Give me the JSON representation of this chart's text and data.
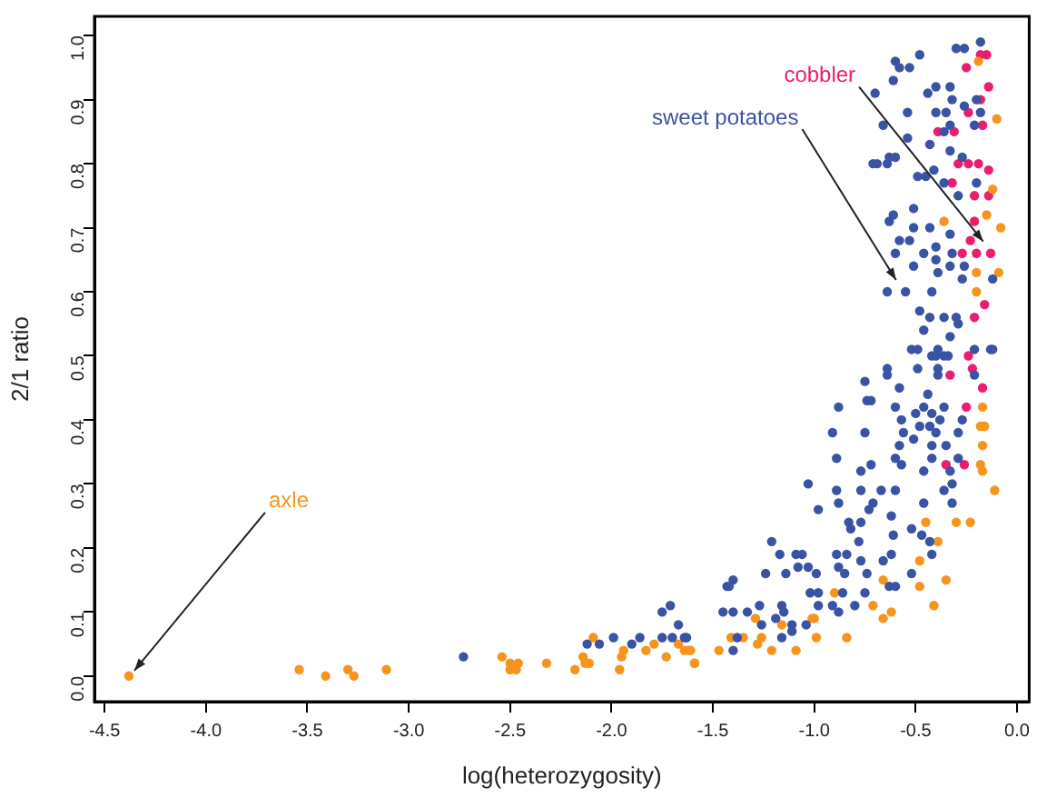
{
  "chart_data": {
    "type": "scatter",
    "xlabel": "log(heterozygosity)",
    "ylabel": "2/1 ratio",
    "marker": "circle",
    "grid": false,
    "legend": false,
    "xlim": [
      -4.55,
      0.06
    ],
    "ylim": [
      -0.04,
      1.03
    ],
    "xticks": [
      {
        "value": -4.5,
        "label": "-4.5"
      },
      {
        "value": -4,
        "label": "-4.0"
      },
      {
        "value": -3.5,
        "label": "-3.5"
      },
      {
        "value": -3,
        "label": "-3.0"
      },
      {
        "value": -2.5,
        "label": "-2.5"
      },
      {
        "value": -2,
        "label": "-2.0"
      },
      {
        "value": -1.5,
        "label": "-1.5"
      },
      {
        "value": -1,
        "label": "-1.0"
      },
      {
        "value": -0.5,
        "label": "-0.5"
      },
      {
        "value": 0,
        "label": "0.0"
      }
    ],
    "yticks": [
      {
        "value": 0,
        "label": "0.0"
      },
      {
        "value": 0.1,
        "label": "0.1"
      },
      {
        "value": 0.2,
        "label": "0.2"
      },
      {
        "value": 0.3,
        "label": "0.3"
      },
      {
        "value": 0.4,
        "label": "0.4"
      },
      {
        "value": 0.5,
        "label": "0.5"
      },
      {
        "value": 0.6,
        "label": "0.6"
      },
      {
        "value": 0.7,
        "label": "0.7"
      },
      {
        "value": 0.8,
        "label": "0.8"
      },
      {
        "value": 0.9,
        "label": "0.9"
      },
      {
        "value": 1,
        "label": "1.0"
      }
    ],
    "series": [
      {
        "color": "#3a53a4",
        "x": [
          -0.18,
          -0.26,
          -0.3,
          -0.48,
          -0.6,
          -0.53,
          -0.58,
          -0.61,
          -0.7,
          -0.4,
          -0.33,
          -0.44,
          -0.32,
          -0.2,
          -0.26,
          -0.18,
          -0.54,
          -0.4,
          -0.35,
          -0.66,
          -0.33,
          -0.21,
          -0.54,
          -0.36,
          -0.43,
          -0.33,
          -0.27,
          -0.63,
          -0.6,
          -0.69,
          -0.71,
          -0.64,
          -0.41,
          -0.49,
          -0.45,
          -0.36,
          -0.29,
          -0.2,
          -0.51,
          -0.61,
          -0.63,
          -0.51,
          -0.43,
          -0.33,
          -0.58,
          -0.53,
          -0.46,
          -0.4,
          -0.32,
          -0.33,
          -0.26,
          -0.4,
          -0.6,
          -0.51,
          -0.39,
          -0.27,
          -0.12,
          -0.64,
          -0.55,
          -0.42,
          -0.48,
          -0.43,
          -0.36,
          -0.3,
          -0.46,
          -0.29,
          -0.33,
          -0.39,
          -0.52,
          -0.49,
          -0.42,
          -0.36,
          -0.13,
          -0.21,
          -0.4,
          -0.34,
          -0.12,
          -0.64,
          -0.64,
          -0.49,
          -0.39,
          -0.39,
          -0.21,
          -0.75,
          -0.58,
          -0.44,
          -0.74,
          -0.72,
          -0.6,
          -0.88,
          -0.46,
          -0.42,
          -0.36,
          -0.57,
          -0.5,
          -0.43,
          -0.38,
          -0.27,
          -0.75,
          -0.91,
          -0.56,
          -0.48,
          -0.4,
          -0.29,
          -0.58,
          -0.51,
          -0.42,
          -0.35,
          -0.6,
          -0.89,
          -0.72,
          -0.57,
          -0.46,
          -0.33,
          -0.42,
          -0.29,
          -0.77,
          -0.89,
          -1.03,
          -0.32,
          -0.36,
          -0.67,
          -0.6,
          -0.77,
          -0.71,
          -0.88,
          -0.98,
          -0.32,
          -0.46,
          -0.83,
          -0.73,
          -0.62,
          -0.82,
          -0.77,
          -0.61,
          -0.52,
          -0.47,
          -0.78,
          -1.21,
          -0.43,
          -0.42,
          -0.89,
          -0.84,
          -1.17,
          -1.09,
          -1.06,
          -0.66,
          -0.62,
          -0.77,
          -1.24,
          -1.14,
          -1.08,
          -1.03,
          -0.99,
          -0.88,
          -0.85,
          -0.74,
          -0.52,
          -1.43,
          -1.4,
          -1.42,
          -1.02,
          -0.98,
          -0.86,
          -0.75,
          -0.63,
          -0.6,
          -0.91,
          -0.98,
          -0.8,
          -1.45,
          -1.4,
          -1.33,
          -1.27,
          -1.16,
          -1.15,
          -1.19,
          -1.11,
          -1.26,
          -1.04,
          -0.88,
          -1.38,
          -1.4,
          -1.16,
          -1.11,
          -1.63,
          -2.73,
          -2.12,
          -2.06,
          -1.99,
          -1.9,
          -1.86,
          -1.75,
          -1.75,
          -1.71,
          -1.67,
          -1.7,
          -1.64
        ],
        "values": [
          0.99,
          0.98,
          0.98,
          0.97,
          0.96,
          0.95,
          0.95,
          0.93,
          0.91,
          0.92,
          0.92,
          0.91,
          0.9,
          0.9,
          0.89,
          0.88,
          0.88,
          0.88,
          0.88,
          0.86,
          0.86,
          0.86,
          0.84,
          0.85,
          0.83,
          0.82,
          0.81,
          0.81,
          0.81,
          0.8,
          0.8,
          0.8,
          0.79,
          0.78,
          0.78,
          0.77,
          0.75,
          0.77,
          0.73,
          0.72,
          0.71,
          0.7,
          0.7,
          0.69,
          0.68,
          0.68,
          0.66,
          0.67,
          0.66,
          0.64,
          0.64,
          0.65,
          0.66,
          0.64,
          0.63,
          0.62,
          0.62,
          0.6,
          0.6,
          0.6,
          0.57,
          0.56,
          0.56,
          0.56,
          0.54,
          0.55,
          0.53,
          0.51,
          0.51,
          0.51,
          0.5,
          0.5,
          0.51,
          0.51,
          0.5,
          0.5,
          0.51,
          0.48,
          0.47,
          0.48,
          0.48,
          0.47,
          0.47,
          0.46,
          0.45,
          0.44,
          0.43,
          0.43,
          0.42,
          0.42,
          0.42,
          0.41,
          0.42,
          0.4,
          0.41,
          0.39,
          0.4,
          0.4,
          0.38,
          0.38,
          0.38,
          0.39,
          0.38,
          0.38,
          0.36,
          0.37,
          0.36,
          0.36,
          0.34,
          0.34,
          0.33,
          0.33,
          0.32,
          0.32,
          0.34,
          0.34,
          0.32,
          0.29,
          0.3,
          0.3,
          0.29,
          0.29,
          0.29,
          0.29,
          0.27,
          0.27,
          0.26,
          0.27,
          0.27,
          0.24,
          0.26,
          0.25,
          0.23,
          0.24,
          0.22,
          0.23,
          0.22,
          0.21,
          0.21,
          0.21,
          0.19,
          0.19,
          0.19,
          0.19,
          0.19,
          0.19,
          0.18,
          0.19,
          0.18,
          0.16,
          0.16,
          0.17,
          0.17,
          0.16,
          0.17,
          0.16,
          0.16,
          0.16,
          0.14,
          0.15,
          0.14,
          0.13,
          0.13,
          0.13,
          0.13,
          0.14,
          0.14,
          0.11,
          0.11,
          0.11,
          0.1,
          0.1,
          0.1,
          0.11,
          0.11,
          0.1,
          0.09,
          0.08,
          0.08,
          0.08,
          0.1,
          0.06,
          0.04,
          0.06,
          0.07,
          0.06,
          0.03,
          0.05,
          0.05,
          0.06,
          0.05,
          0.06,
          0.06,
          0.1,
          0.11,
          0.08,
          0.06,
          0.06
        ]
      },
      {
        "color": "#f7941d",
        "x": [
          -0.19,
          -0.1,
          -0.12,
          -0.36,
          -0.15,
          -0.08,
          -0.2,
          -0.09,
          -0.2,
          -0.17,
          -0.18,
          -0.16,
          -0.17,
          -0.18,
          -0.17,
          -0.11,
          -0.45,
          -0.3,
          -0.23,
          -0.43,
          -0.39,
          -0.48,
          -0.35,
          -0.48,
          -0.66,
          -0.71,
          -0.62,
          -0.66,
          -0.41,
          -0.9,
          -1,
          -1.01,
          -1.16,
          -0.99,
          -0.84,
          -1.09,
          -1.29,
          -1.26,
          -1.28,
          -1.21,
          -1.41,
          -1.47,
          -1.35,
          -1.59,
          -1.62,
          -4.38,
          -3.54,
          -3.41,
          -3.3,
          -3.27,
          -3.11,
          -2.54,
          -2.5,
          -2.5,
          -2.46,
          -2.47,
          -2.32,
          -2.18,
          -2.14,
          -2.13,
          -2.11,
          -2.09,
          -1.94,
          -1.95,
          -1.96,
          -1.83,
          -1.79,
          -1.73,
          -1.67,
          -1.64,
          -1.61,
          -1.59
        ],
        "values": [
          0.96,
          0.87,
          0.76,
          0.71,
          0.72,
          0.7,
          0.63,
          0.63,
          0.6,
          0.42,
          0.39,
          0.39,
          0.36,
          0.33,
          0.32,
          0.29,
          0.24,
          0.24,
          0.24,
          0.21,
          0.21,
          0.18,
          0.15,
          0.14,
          0.15,
          0.11,
          0.1,
          0.09,
          0.11,
          0.13,
          0.09,
          0.09,
          0.08,
          0.06,
          0.06,
          0.04,
          0.09,
          0.06,
          0.05,
          0.04,
          0.06,
          0.04,
          0.06,
          0.02,
          0.04,
          0,
          0.01,
          0,
          0.01,
          0,
          0.01,
          0.03,
          0.02,
          0.01,
          0.02,
          0.01,
          0.02,
          0.01,
          0.03,
          0.02,
          0.02,
          0.06,
          0.04,
          0.03,
          0.01,
          0.04,
          0.05,
          0.03,
          0.05,
          0.04,
          0.04,
          0.02
        ]
      },
      {
        "color": "#ec1c6e",
        "x": [
          -0.25,
          -0.18,
          -0.15,
          -0.14,
          -0.18,
          -0.24,
          -0.39,
          -0.31,
          -0.17,
          -0.29,
          -0.24,
          -0.19,
          -0.14,
          -0.32,
          -0.21,
          -0.14,
          -0.21,
          -0.23,
          -0.27,
          -0.2,
          -0.13,
          -0.16,
          -0.21,
          -0.24,
          -0.22,
          -0.33,
          -0.17,
          -0.25,
          -0.35,
          -0.26
        ],
        "values": [
          0.95,
          0.97,
          0.97,
          0.92,
          0.9,
          0.88,
          0.85,
          0.85,
          0.86,
          0.8,
          0.8,
          0.8,
          0.79,
          0.77,
          0.75,
          0.75,
          0.71,
          0.68,
          0.66,
          0.66,
          0.66,
          0.58,
          0.56,
          0.5,
          0.48,
          0.47,
          0.45,
          0.42,
          0.33,
          0.33
        ]
      }
    ],
    "annotations": [
      {
        "text": "axle",
        "x": -4.38,
        "y": 0
      },
      {
        "text": "sweet potatoes",
        "x": -0.57,
        "y": 0.61
      },
      {
        "text": "cobbler",
        "x": -0.14,
        "y": 0.67
      }
    ]
  }
}
